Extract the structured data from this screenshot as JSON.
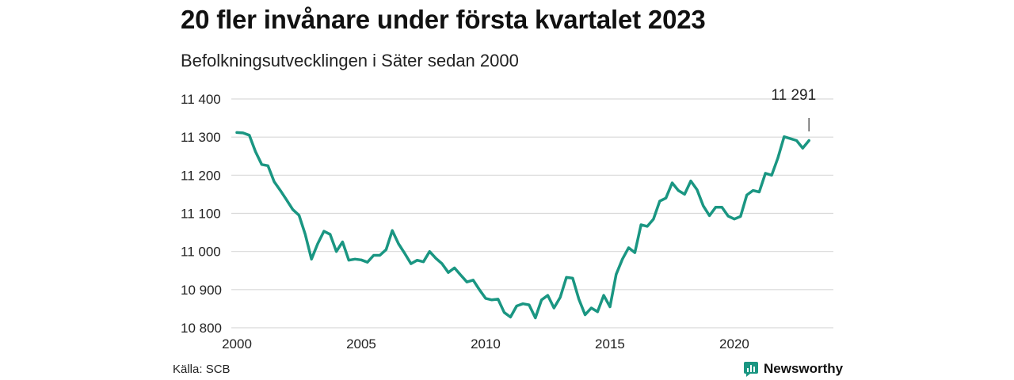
{
  "header": {
    "title": "20 fler invånare under första kvartalet 2023",
    "subtitle": "Befolkningsutvecklingen i Säter sedan 2000"
  },
  "footer": {
    "source": "Källa: SCB",
    "brand": "Newsworthy",
    "brand_icon": "bar-chart-logo-icon"
  },
  "colors": {
    "line": "#1a9682",
    "grid": "#d9d9d9",
    "brand": "#1a9682"
  },
  "chart_data": {
    "type": "line",
    "grid": true,
    "ylim": [
      10800,
      11400
    ],
    "xlim": [
      2000,
      2023.25
    ],
    "yticks": [
      10800,
      10900,
      11000,
      11100,
      11200,
      11300,
      11400
    ],
    "ytick_labels": [
      "10 800",
      "10 900",
      "11 000",
      "11 100",
      "11 200",
      "11 300",
      "11 400"
    ],
    "xticks": [
      2000,
      2005,
      2010,
      2015,
      2020
    ],
    "xtick_labels": [
      "2000",
      "2005",
      "2010",
      "2015",
      "2020"
    ],
    "series": [
      {
        "x": [
          2000.0,
          2000.25,
          2000.5,
          2000.75,
          2001.0,
          2001.25,
          2001.5,
          2001.75,
          2002.0,
          2002.25,
          2002.5,
          2002.75,
          2003.0,
          2003.25,
          2003.5,
          2003.75,
          2004.0,
          2004.25,
          2004.5,
          2004.75,
          2005.0,
          2005.25,
          2005.5,
          2005.75,
          2006.0,
          2006.25,
          2006.5,
          2006.75,
          2007.0,
          2007.25,
          2007.5,
          2007.75,
          2008.0,
          2008.25,
          2008.5,
          2008.75,
          2009.0,
          2009.25,
          2009.5,
          2009.75,
          2010.0,
          2010.25,
          2010.5,
          2010.75,
          2011.0,
          2011.25,
          2011.5,
          2011.75,
          2012.0,
          2012.25,
          2012.5,
          2012.75,
          2013.0,
          2013.25,
          2013.5,
          2013.75,
          2014.0,
          2014.25,
          2014.5,
          2014.75,
          2015.0,
          2015.25,
          2015.5,
          2015.75,
          2016.0,
          2016.25,
          2016.5,
          2016.75,
          2017.0,
          2017.25,
          2017.5,
          2017.75,
          2018.0,
          2018.25,
          2018.5,
          2018.75,
          2019.0,
          2019.25,
          2019.5,
          2019.75,
          2020.0,
          2020.25,
          2020.5,
          2020.75,
          2021.0,
          2021.25,
          2021.5,
          2021.75,
          2022.0,
          2022.25,
          2022.5,
          2022.75,
          2023.0
        ],
        "values": [
          11312,
          11311,
          11305,
          11262,
          11228,
          11225,
          11183,
          11160,
          11135,
          11110,
          11095,
          11045,
          10980,
          11020,
          11053,
          11045,
          11000,
          11025,
          10977,
          10980,
          10978,
          10972,
          10990,
          10990,
          11005,
          11055,
          11020,
          10995,
          10968,
          10977,
          10973,
          11000,
          10982,
          10968,
          10945,
          10957,
          10938,
          10920,
          10925,
          10900,
          10877,
          10873,
          10875,
          10840,
          10828,
          10857,
          10863,
          10860,
          10826,
          10873,
          10885,
          10852,
          10880,
          10932,
          10930,
          10875,
          10834,
          10852,
          10842,
          10885,
          10855,
          10940,
          10980,
          11010,
          10997,
          11070,
          11066,
          11085,
          11132,
          11140,
          11180,
          11160,
          11150,
          11185,
          11162,
          11120,
          11094,
          11116,
          11116,
          11093,
          11085,
          11092,
          11148,
          11160,
          11156,
          11205,
          11200,
          11245,
          11301,
          11296,
          11291,
          11271,
          11291
        ]
      }
    ],
    "annotation": {
      "label": "11 291",
      "x": 2023.0,
      "y": 11291
    }
  }
}
